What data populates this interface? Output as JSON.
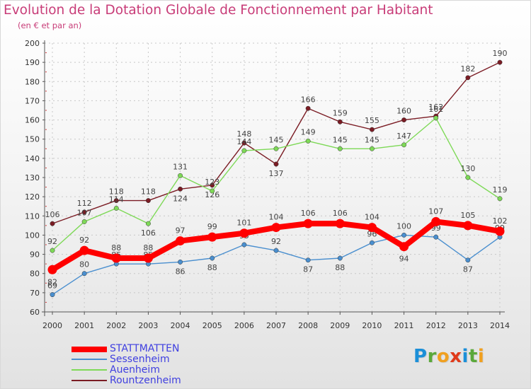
{
  "chart_data": {
    "type": "line",
    "title": "Evolution de la Dotation Globale de Fonctionnement par Habitant",
    "subtitle": "(en € et par an)",
    "x": [
      "2000",
      "2001",
      "2002",
      "2003",
      "2004",
      "2005",
      "2006",
      "2007",
      "2008",
      "2009",
      "2010",
      "2011",
      "2012",
      "2013",
      "2014"
    ],
    "ylim": [
      60,
      200
    ],
    "yticks": [
      60,
      70,
      80,
      90,
      100,
      110,
      120,
      130,
      140,
      150,
      160,
      170,
      180,
      190,
      200
    ],
    "grid": true,
    "legend_position": "bottom-left",
    "series": [
      {
        "name": "STATTMATTEN",
        "color": "#ff0000",
        "values": [
          82,
          92,
          88,
          88,
          97,
          99,
          101,
          104,
          106,
          106,
          104,
          94,
          107,
          105,
          102
        ]
      },
      {
        "name": "Sessenheim",
        "color": "#4a8fcf",
        "values": [
          69,
          80,
          85,
          85,
          86,
          88,
          95,
          92,
          87,
          88,
          96,
          100,
          99,
          87,
          99
        ]
      },
      {
        "name": "Auenheim",
        "color": "#7ed957",
        "values": [
          92,
          107,
          114,
          106,
          131,
          123,
          144,
          145,
          149,
          145,
          145,
          147,
          161,
          130,
          119
        ]
      },
      {
        "name": "Rountzenheim",
        "color": "#7b1c24",
        "values": [
          106,
          112,
          118,
          118,
          124,
          126,
          148,
          137,
          166,
          159,
          155,
          160,
          162,
          182,
          190
        ]
      }
    ]
  },
  "logo": {
    "letters": [
      "P",
      "r",
      "o",
      "x",
      "i",
      "t",
      "i"
    ],
    "colors": [
      "#1b8fd8",
      "#5aa83a",
      "#f0a020",
      "#e03a1a",
      "#1b8fd8",
      "#5aa83a",
      "#f0a020"
    ]
  }
}
